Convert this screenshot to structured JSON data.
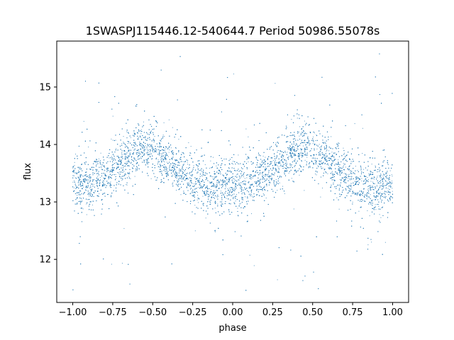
{
  "chart_data": {
    "type": "scatter",
    "title": "1SWASPJ115446.12-540644.7 Period 50986.55078s",
    "xlabel": "phase",
    "ylabel": "flux",
    "xlim": [
      -1.1,
      1.1
    ],
    "ylim": [
      11.25,
      15.8
    ],
    "xticks": [
      -1.0,
      -0.75,
      -0.5,
      -0.25,
      0.0,
      0.25,
      0.5,
      0.75,
      1.0
    ],
    "xtick_labels": [
      "−1.00",
      "−0.75",
      "−0.50",
      "−0.25",
      "0.00",
      "0.25",
      "0.50",
      "0.75",
      "1.00"
    ],
    "yticks": [
      12,
      13,
      14,
      15
    ],
    "ytick_labels": [
      "12",
      "13",
      "14",
      "15"
    ],
    "grid": false,
    "marker_color": "#1f77b4",
    "series": [
      {
        "x": [
          -1.0,
          -0.9,
          -0.8,
          -0.7,
          -0.6,
          -0.55,
          -0.5,
          -0.4,
          -0.3,
          -0.2,
          -0.1,
          0.0,
          0.1,
          0.2,
          0.3,
          0.4,
          0.45,
          0.5,
          0.6,
          0.7,
          0.8,
          0.9,
          1.0
        ],
        "y": [
          13.35,
          13.3,
          13.45,
          13.7,
          13.92,
          13.97,
          13.9,
          13.7,
          13.45,
          13.3,
          13.25,
          13.3,
          13.35,
          13.45,
          13.7,
          13.92,
          13.97,
          13.9,
          13.7,
          13.45,
          13.3,
          13.25,
          13.35
        ]
      }
    ]
  }
}
